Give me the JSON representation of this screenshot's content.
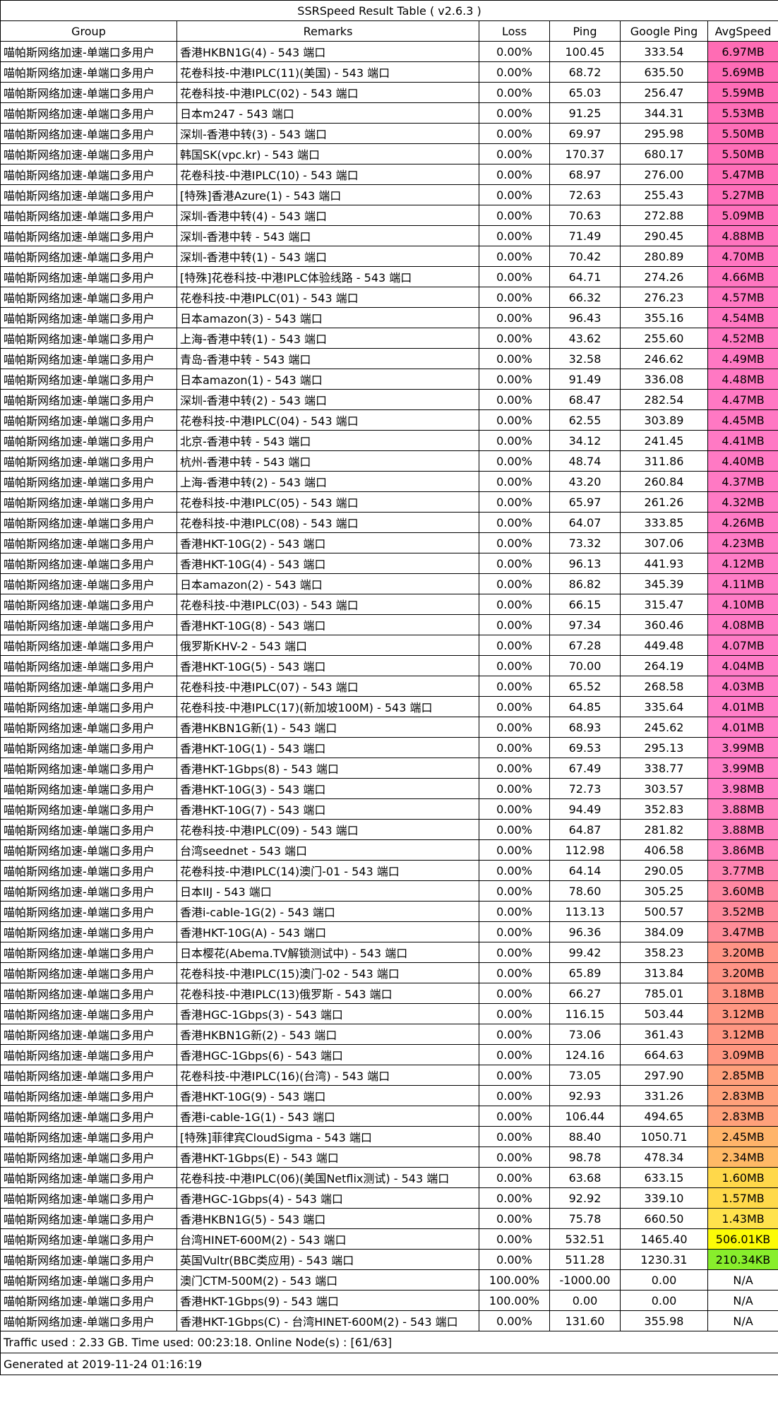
{
  "title": "SSRSpeed Result Table ( v2.6.3 )",
  "headers": [
    "Group",
    "Remarks",
    "Loss",
    "Ping",
    "Google Ping",
    "AvgSpeed"
  ],
  "rows": [
    {
      "group": "喵帕斯网络加速-单端口多用户",
      "remarks": "香港HKBN1G(4) - 543 端口",
      "loss": "0.00%",
      "ping": "100.45",
      "gping": "333.54",
      "speed": "6.97MB",
      "color": "#ff6cb4"
    },
    {
      "group": "喵帕斯网络加速-单端口多用户",
      "remarks": "花卷科技-中港IPLC(11)(美国) - 543 端口",
      "loss": "0.00%",
      "ping": "68.72",
      "gping": "635.50",
      "speed": "5.69MB",
      "color": "#ff6cb6"
    },
    {
      "group": "喵帕斯网络加速-单端口多用户",
      "remarks": "花卷科技-中港IPLC(02) - 543 端口",
      "loss": "0.00%",
      "ping": "65.03",
      "gping": "256.47",
      "speed": "5.59MB",
      "color": "#ff6db7"
    },
    {
      "group": "喵帕斯网络加速-单端口多用户",
      "remarks": "日本m247 - 543 端口",
      "loss": "0.00%",
      "ping": "91.25",
      "gping": "344.31",
      "speed": "5.53MB",
      "color": "#ff6eb8"
    },
    {
      "group": "喵帕斯网络加速-单端口多用户",
      "remarks": "深圳-香港中转(3) - 543 端口",
      "loss": "0.00%",
      "ping": "69.97",
      "gping": "295.98",
      "speed": "5.50MB",
      "color": "#ff6eb8"
    },
    {
      "group": "喵帕斯网络加速-单端口多用户",
      "remarks": "韩国SK(vpc.kr) - 543 端口",
      "loss": "0.00%",
      "ping": "170.37",
      "gping": "680.17",
      "speed": "5.50MB",
      "color": "#ff6eb8"
    },
    {
      "group": "喵帕斯网络加速-单端口多用户",
      "remarks": "花卷科技-中港IPLC(10) - 543 端口",
      "loss": "0.00%",
      "ping": "68.97",
      "gping": "276.00",
      "speed": "5.47MB",
      "color": "#ff6fb9"
    },
    {
      "group": "喵帕斯网络加速-单端口多用户",
      "remarks": "[特殊]香港Azure(1) - 543 端口",
      "loss": "0.00%",
      "ping": "72.63",
      "gping": "255.43",
      "speed": "5.27MB",
      "color": "#ff70bb"
    },
    {
      "group": "喵帕斯网络加速-单端口多用户",
      "remarks": "深圳-香港中转(4) - 543 端口",
      "loss": "0.00%",
      "ping": "70.63",
      "gping": "272.88",
      "speed": "5.09MB",
      "color": "#ff72bd"
    },
    {
      "group": "喵帕斯网络加速-单端口多用户",
      "remarks": "深圳-香港中转 - 543 端口",
      "loss": "0.00%",
      "ping": "71.49",
      "gping": "290.45",
      "speed": "4.88MB",
      "color": "#ff74bf"
    },
    {
      "group": "喵帕斯网络加速-单端口多用户",
      "remarks": "深圳-香港中转(1) - 543 端口",
      "loss": "0.00%",
      "ping": "70.42",
      "gping": "280.89",
      "speed": "4.70MB",
      "color": "#ff76c1"
    },
    {
      "group": "喵帕斯网络加速-单端口多用户",
      "remarks": "[特殊]花卷科技-中港IPLC体验线路 - 543 端口",
      "loss": "0.00%",
      "ping": "64.71",
      "gping": "274.26",
      "speed": "4.66MB",
      "color": "#ff76c1"
    },
    {
      "group": "喵帕斯网络加速-单端口多用户",
      "remarks": "花卷科技-中港IPLC(01) - 543 端口",
      "loss": "0.00%",
      "ping": "66.32",
      "gping": "276.23",
      "speed": "4.57MB",
      "color": "#ff77c2"
    },
    {
      "group": "喵帕斯网络加速-单端口多用户",
      "remarks": "日本amazon(3) - 543 端口",
      "loss": "0.00%",
      "ping": "96.43",
      "gping": "355.16",
      "speed": "4.54MB",
      "color": "#ff77c2"
    },
    {
      "group": "喵帕斯网络加速-单端口多用户",
      "remarks": "上海-香港中转(1) - 543 端口",
      "loss": "0.00%",
      "ping": "43.62",
      "gping": "255.60",
      "speed": "4.52MB",
      "color": "#ff78c3"
    },
    {
      "group": "喵帕斯网络加速-单端口多用户",
      "remarks": "青岛-香港中转 - 543 端口",
      "loss": "0.00%",
      "ping": "32.58",
      "gping": "246.62",
      "speed": "4.49MB",
      "color": "#ff78c3"
    },
    {
      "group": "喵帕斯网络加速-单端口多用户",
      "remarks": "日本amazon(1) - 543 端口",
      "loss": "0.00%",
      "ping": "91.49",
      "gping": "336.08",
      "speed": "4.48MB",
      "color": "#ff78c3"
    },
    {
      "group": "喵帕斯网络加速-单端口多用户",
      "remarks": "深圳-香港中转(2) - 543 端口",
      "loss": "0.00%",
      "ping": "68.47",
      "gping": "282.54",
      "speed": "4.47MB",
      "color": "#ff78c3"
    },
    {
      "group": "喵帕斯网络加速-单端口多用户",
      "remarks": "花卷科技-中港IPLC(04) - 543 端口",
      "loss": "0.00%",
      "ping": "62.55",
      "gping": "303.89",
      "speed": "4.45MB",
      "color": "#ff78c3"
    },
    {
      "group": "喵帕斯网络加速-单端口多用户",
      "remarks": "北京-香港中转 - 543 端口",
      "loss": "0.00%",
      "ping": "34.12",
      "gping": "241.45",
      "speed": "4.41MB",
      "color": "#ff79c4"
    },
    {
      "group": "喵帕斯网络加速-单端口多用户",
      "remarks": "杭州-香港中转 - 543 端口",
      "loss": "0.00%",
      "ping": "48.74",
      "gping": "311.86",
      "speed": "4.40MB",
      "color": "#ff79c4"
    },
    {
      "group": "喵帕斯网络加速-单端口多用户",
      "remarks": "上海-香港中转(2) - 543 端口",
      "loss": "0.00%",
      "ping": "43.20",
      "gping": "260.84",
      "speed": "4.37MB",
      "color": "#ff79c4"
    },
    {
      "group": "喵帕斯网络加速-单端口多用户",
      "remarks": "花卷科技-中港IPLC(05) - 543 端口",
      "loss": "0.00%",
      "ping": "65.97",
      "gping": "261.26",
      "speed": "4.32MB",
      "color": "#ff7ac5"
    },
    {
      "group": "喵帕斯网络加速-单端口多用户",
      "remarks": "花卷科技-中港IPLC(08) - 543 端口",
      "loss": "0.00%",
      "ping": "64.07",
      "gping": "333.85",
      "speed": "4.26MB",
      "color": "#ff7ac5"
    },
    {
      "group": "喵帕斯网络加速-单端口多用户",
      "remarks": "香港HKT-10G(2) - 543 端口",
      "loss": "0.00%",
      "ping": "73.32",
      "gping": "307.06",
      "speed": "4.23MB",
      "color": "#ff7bc6"
    },
    {
      "group": "喵帕斯网络加速-单端口多用户",
      "remarks": "香港HKT-10G(4) - 543 端口",
      "loss": "0.00%",
      "ping": "96.13",
      "gping": "441.93",
      "speed": "4.12MB",
      "color": "#ff7cc7"
    },
    {
      "group": "喵帕斯网络加速-单端口多用户",
      "remarks": "日本amazon(2) - 543 端口",
      "loss": "0.00%",
      "ping": "86.82",
      "gping": "345.39",
      "speed": "4.11MB",
      "color": "#ff7cc7"
    },
    {
      "group": "喵帕斯网络加速-单端口多用户",
      "remarks": "花卷科技-中港IPLC(03) - 543 端口",
      "loss": "0.00%",
      "ping": "66.15",
      "gping": "315.47",
      "speed": "4.10MB",
      "color": "#ff7cc7"
    },
    {
      "group": "喵帕斯网络加速-单端口多用户",
      "remarks": "香港HKT-10G(8) - 543 端口",
      "loss": "0.00%",
      "ping": "97.34",
      "gping": "360.46",
      "speed": "4.08MB",
      "color": "#ff7cc7"
    },
    {
      "group": "喵帕斯网络加速-单端口多用户",
      "remarks": "俄罗斯KHV-2 - 543 端口",
      "loss": "0.00%",
      "ping": "67.28",
      "gping": "449.48",
      "speed": "4.07MB",
      "color": "#ff7cc7"
    },
    {
      "group": "喵帕斯网络加速-单端口多用户",
      "remarks": "香港HKT-10G(5) - 543 端口",
      "loss": "0.00%",
      "ping": "70.00",
      "gping": "264.19",
      "speed": "4.04MB",
      "color": "#ff7dc8"
    },
    {
      "group": "喵帕斯网络加速-单端口多用户",
      "remarks": "花卷科技-中港IPLC(07) - 543 端口",
      "loss": "0.00%",
      "ping": "65.52",
      "gping": "268.58",
      "speed": "4.03MB",
      "color": "#ff7dc8"
    },
    {
      "group": "喵帕斯网络加速-单端口多用户",
      "remarks": "花卷科技-中港IPLC(17)(新加坡100M) - 543 端口",
      "loss": "0.00%",
      "ping": "64.85",
      "gping": "335.64",
      "speed": "4.01MB",
      "color": "#ff7dc8"
    },
    {
      "group": "喵帕斯网络加速-单端口多用户",
      "remarks": "香港HKBN1G新(1) - 543 端口",
      "loss": "0.00%",
      "ping": "68.93",
      "gping": "245.62",
      "speed": "4.01MB",
      "color": "#ff7dc8"
    },
    {
      "group": "喵帕斯网络加速-单端口多用户",
      "remarks": "香港HKT-10G(1) - 543 端口",
      "loss": "0.00%",
      "ping": "69.53",
      "gping": "295.13",
      "speed": "3.99MB",
      "color": "#ff7ec7"
    },
    {
      "group": "喵帕斯网络加速-单端口多用户",
      "remarks": "香港HKT-1Gbps(8) - 543 端口",
      "loss": "0.00%",
      "ping": "67.49",
      "gping": "338.77",
      "speed": "3.99MB",
      "color": "#ff7ec7"
    },
    {
      "group": "喵帕斯网络加速-单端口多用户",
      "remarks": "香港HKT-10G(3) - 543 端口",
      "loss": "0.00%",
      "ping": "72.73",
      "gping": "303.57",
      "speed": "3.98MB",
      "color": "#ff7ec7"
    },
    {
      "group": "喵帕斯网络加速-单端口多用户",
      "remarks": "香港HKT-10G(7) - 543 端口",
      "loss": "0.00%",
      "ping": "94.49",
      "gping": "352.83",
      "speed": "3.88MB",
      "color": "#ff80c0"
    },
    {
      "group": "喵帕斯网络加速-单端口多用户",
      "remarks": "花卷科技-中港IPLC(09) - 543 端口",
      "loss": "0.00%",
      "ping": "64.87",
      "gping": "281.82",
      "speed": "3.88MB",
      "color": "#ff80c0"
    },
    {
      "group": "喵帕斯网络加速-单端口多用户",
      "remarks": "台湾seednet - 543 端口",
      "loss": "0.00%",
      "ping": "112.98",
      "gping": "406.58",
      "speed": "3.86MB",
      "color": "#ff81bd"
    },
    {
      "group": "喵帕斯网络加速-单端口多用户",
      "remarks": "花卷科技-中港IPLC(14)澳门-01 - 543 端口",
      "loss": "0.00%",
      "ping": "64.14",
      "gping": "290.05",
      "speed": "3.77MB",
      "color": "#ff84b2"
    },
    {
      "group": "喵帕斯网络加速-单端口多用户",
      "remarks": "日本IIJ - 543 端口",
      "loss": "0.00%",
      "ping": "78.60",
      "gping": "305.25",
      "speed": "3.60MB",
      "color": "#ff88a2"
    },
    {
      "group": "喵帕斯网络加速-单端口多用户",
      "remarks": "香港i-cable-1G(2) - 543 端口",
      "loss": "0.00%",
      "ping": "113.13",
      "gping": "500.57",
      "speed": "3.52MB",
      "color": "#ff8a9c"
    },
    {
      "group": "喵帕斯网络加速-单端口多用户",
      "remarks": "香港HKT-10G(A) - 543 端口",
      "loss": "0.00%",
      "ping": "96.36",
      "gping": "384.09",
      "speed": "3.47MB",
      "color": "#ff8c98"
    },
    {
      "group": "喵帕斯网络加速-单端口多用户",
      "remarks": "日本樱花(Abema.TV解锁测试中) - 543 端口",
      "loss": "0.00%",
      "ping": "99.42",
      "gping": "358.23",
      "speed": "3.20MB",
      "color": "#ff9486"
    },
    {
      "group": "喵帕斯网络加速-单端口多用户",
      "remarks": "花卷科技-中港IPLC(15)澳门-02 - 543 端口",
      "loss": "0.00%",
      "ping": "65.89",
      "gping": "313.84",
      "speed": "3.20MB",
      "color": "#ff9486"
    },
    {
      "group": "喵帕斯网络加速-单端口多用户",
      "remarks": "花卷科技-中港IPLC(13)俄罗斯 - 543 端口",
      "loss": "0.00%",
      "ping": "66.27",
      "gping": "785.01",
      "speed": "3.18MB",
      "color": "#ff9585"
    },
    {
      "group": "喵帕斯网络加速-单端口多用户",
      "remarks": "香港HGC-1Gbps(3) - 543 端口",
      "loss": "0.00%",
      "ping": "116.15",
      "gping": "503.44",
      "speed": "3.12MB",
      "color": "#ff9682"
    },
    {
      "group": "喵帕斯网络加速-单端口多用户",
      "remarks": "香港HKBN1G新(2) - 543 端口",
      "loss": "0.00%",
      "ping": "73.06",
      "gping": "361.43",
      "speed": "3.12MB",
      "color": "#ff9682"
    },
    {
      "group": "喵帕斯网络加速-单端口多用户",
      "remarks": "香港HGC-1Gbps(6) - 543 端口",
      "loss": "0.00%",
      "ping": "124.16",
      "gping": "664.63",
      "speed": "3.09MB",
      "color": "#ff9781"
    },
    {
      "group": "喵帕斯网络加速-单端口多用户",
      "remarks": "花卷科技-中港IPLC(16)(台湾) - 543 端口",
      "loss": "0.00%",
      "ping": "73.05",
      "gping": "297.90",
      "speed": "2.85MB",
      "color": "#ffa07c"
    },
    {
      "group": "喵帕斯网络加速-单端口多用户",
      "remarks": "香港HKT-10G(9) - 543 端口",
      "loss": "0.00%",
      "ping": "92.93",
      "gping": "331.26",
      "speed": "2.83MB",
      "color": "#ffa17b"
    },
    {
      "group": "喵帕斯网络加速-单端口多用户",
      "remarks": "香港i-cable-1G(1) - 543 端口",
      "loss": "0.00%",
      "ping": "106.44",
      "gping": "494.65",
      "speed": "2.83MB",
      "color": "#ffa17b"
    },
    {
      "group": "喵帕斯网络加速-单端口多用户",
      "remarks": "[特殊]菲律宾CloudSigma - 543 端口",
      "loss": "0.00%",
      "ping": "88.40",
      "gping": "1050.71",
      "speed": "2.45MB",
      "color": "#ffb46a"
    },
    {
      "group": "喵帕斯网络加速-单端口多用户",
      "remarks": "香港HKT-1Gbps(E) - 543 端口",
      "loss": "0.00%",
      "ping": "98.78",
      "gping": "478.34",
      "speed": "2.34MB",
      "color": "#ffb966"
    },
    {
      "group": "喵帕斯网络加速-单端口多用户",
      "remarks": "花卷科技-中港IPLC(06)(美国Netflix测试) - 543 端口",
      "loss": "0.00%",
      "ping": "63.68",
      "gping": "633.15",
      "speed": "1.60MB",
      "color": "#ffd84a"
    },
    {
      "group": "喵帕斯网络加速-单端口多用户",
      "remarks": "香港HGC-1Gbps(4) - 543 端口",
      "loss": "0.00%",
      "ping": "92.92",
      "gping": "339.10",
      "speed": "1.57MB",
      "color": "#ffd94a"
    },
    {
      "group": "喵帕斯网络加速-单端口多用户",
      "remarks": "香港HKBN1G(5) - 543 端口",
      "loss": "0.00%",
      "ping": "75.78",
      "gping": "660.50",
      "speed": "1.43MB",
      "color": "#ffe24c"
    },
    {
      "group": "喵帕斯网络加速-单端口多用户",
      "remarks": "台湾HINET-600M(2) - 543 端口",
      "loss": "0.00%",
      "ping": "532.51",
      "gping": "1465.40",
      "speed": "506.01KB",
      "color": "#fcfb07"
    },
    {
      "group": "喵帕斯网络加速-单端口多用户",
      "remarks": "英国Vultr(BBC类应用) - 543 端口",
      "loss": "0.00%",
      "ping": "511.28",
      "gping": "1230.31",
      "speed": "210.34KB",
      "color": "#88ee2c"
    },
    {
      "group": "喵帕斯网络加速-单端口多用户",
      "remarks": "澳门CTM-500M(2) - 543 端口",
      "loss": "100.00%",
      "ping": "-1000.00",
      "gping": "0.00",
      "speed": "N/A",
      "color": "#ffffff"
    },
    {
      "group": "喵帕斯网络加速-单端口多用户",
      "remarks": "香港HKT-1Gbps(9) - 543 端口",
      "loss": "100.00%",
      "ping": "0.00",
      "gping": "0.00",
      "speed": "N/A",
      "color": "#ffffff"
    },
    {
      "group": "喵帕斯网络加速-单端口多用户",
      "remarks": "香港HKT-1Gbps(C) - 台湾HINET-600M(2) - 543 端口",
      "loss": "0.00%",
      "ping": "131.60",
      "gping": "355.98",
      "speed": "N/A",
      "color": "#ffffff"
    }
  ],
  "footer": {
    "summary": "Traffic used : 2.33 GB. Time used: 00:23:18. Online Node(s) : [61/63]",
    "generated": "Generated at 2019-11-24 01:16:19"
  }
}
